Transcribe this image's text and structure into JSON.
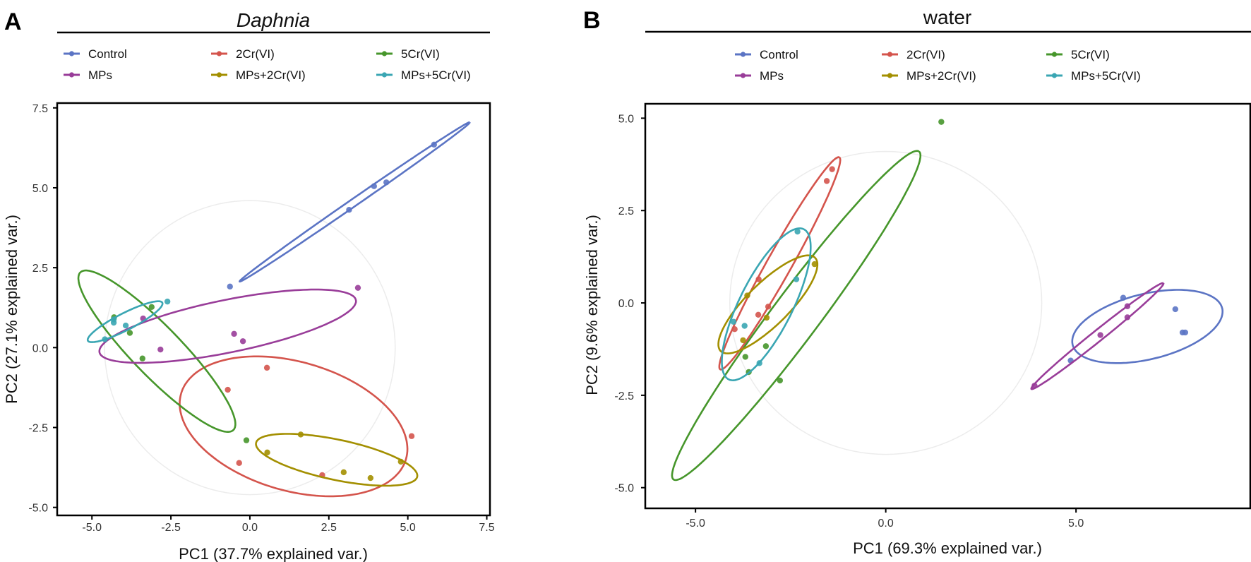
{
  "groups": [
    {
      "name": "Control",
      "color": "#5b74c4"
    },
    {
      "name": "2Cr(VI)",
      "color": "#d4544c"
    },
    {
      "name": "5Cr(VI)",
      "color": "#46962b"
    },
    {
      "name": "MPs",
      "color": "#993d99"
    },
    {
      "name": "MPs+2Cr(VI)",
      "color": "#a38f00"
    },
    {
      "name": "MPs+5Cr(VI)",
      "color": "#3aa6b3"
    }
  ],
  "chart_data": [
    {
      "type": "scatter",
      "panel": "A",
      "title": "Daphnia",
      "xlabel": "PC1 (37.7% explained var.)",
      "ylabel": "PC2 (27.1% explained var.)",
      "xlim": [
        -6.1,
        7.6
      ],
      "ylim": [
        -5.25,
        7.65
      ],
      "xticks": [
        -5.0,
        -2.5,
        0.0,
        2.5,
        5.0,
        7.5
      ],
      "yticks": [
        -5.0,
        -2.5,
        0.0,
        2.5,
        5.0,
        7.5
      ],
      "xtick_labels": [
        "-5.0",
        "-2.5",
        "0.0",
        "2.5",
        "5.0",
        "7.5"
      ],
      "ytick_labels": [
        "-5.0",
        "-2.5",
        "0.0",
        "2.5",
        "5.0",
        "7.5"
      ],
      "circle_radius": 4.6,
      "ellipse_prob": 0.68,
      "legend": "top",
      "series": [
        {
          "name": "Control",
          "points": [
            [
              5.83,
              6.35
            ],
            [
              3.93,
              5.05
            ],
            [
              4.32,
              5.17
            ],
            [
              3.14,
              4.31
            ],
            [
              -0.63,
              1.91
            ]
          ]
        },
        {
          "name": "2Cr(VI)",
          "points": [
            [
              0.54,
              -0.63
            ],
            [
              -0.7,
              -1.32
            ],
            [
              5.12,
              -2.77
            ],
            [
              -0.34,
              -3.61
            ],
            [
              2.29,
              -3.99
            ]
          ]
        },
        {
          "name": "5Cr(VI)",
          "points": [
            [
              -3.11,
              1.27
            ],
            [
              -3.8,
              0.46
            ],
            [
              -3.4,
              -0.34
            ],
            [
              -0.11,
              -2.9
            ],
            [
              -4.3,
              0.95
            ]
          ]
        },
        {
          "name": "MPs",
          "points": [
            [
              3.42,
              1.87
            ],
            [
              -0.5,
              0.43
            ],
            [
              -0.22,
              0.2
            ],
            [
              -2.83,
              -0.06
            ],
            [
              -3.38,
              0.91
            ]
          ]
        },
        {
          "name": "MPs+2Cr(VI)",
          "points": [
            [
              1.61,
              -2.72
            ],
            [
              0.55,
              -3.28
            ],
            [
              2.97,
              -3.9
            ],
            [
              3.82,
              -4.08
            ],
            [
              4.78,
              -3.57
            ]
          ]
        },
        {
          "name": "MPs+5Cr(VI)",
          "points": [
            [
              -2.61,
              1.44
            ],
            [
              -4.31,
              0.88
            ],
            [
              -4.31,
              0.78
            ],
            [
              -3.93,
              0.69
            ],
            [
              -4.59,
              0.26
            ]
          ]
        }
      ]
    },
    {
      "type": "scatter",
      "panel": "B",
      "title": "water",
      "xlabel": "PC1 (69.3% explained var.)",
      "ylabel": "PC2 (9.6% explained var.)",
      "xlim": [
        -6.32,
        9.58
      ],
      "ylim": [
        -5.56,
        5.39
      ],
      "xticks": [
        -5.0,
        0.0,
        5.0
      ],
      "yticks": [
        -5.0,
        -2.5,
        0.0,
        2.5,
        5.0
      ],
      "xtick_labels": [
        "-5.0",
        "0.0",
        "5.0"
      ],
      "ytick_labels": [
        "-5.0",
        "-2.5",
        "0.0",
        "2.5",
        "5.0"
      ],
      "circle_radius": 4.1,
      "ellipse_prob": 0.68,
      "legend": "top",
      "series": [
        {
          "name": "Control",
          "points": [
            [
              6.24,
              0.14
            ],
            [
              7.61,
              -0.17
            ],
            [
              7.8,
              -0.8
            ],
            [
              7.87,
              -0.8
            ],
            [
              4.86,
              -1.56
            ]
          ]
        },
        {
          "name": "2Cr(VI)",
          "points": [
            [
              -1.41,
              3.62
            ],
            [
              -1.55,
              3.3
            ],
            [
              -3.34,
              0.64
            ],
            [
              -3.09,
              -0.1
            ],
            [
              -3.35,
              -0.32
            ],
            [
              -3.97,
              -0.71
            ]
          ]
        },
        {
          "name": "5Cr(VI)",
          "points": [
            [
              1.46,
              4.9
            ],
            [
              -2.78,
              -2.1
            ],
            [
              -3.15,
              -1.17
            ],
            [
              -3.69,
              -1.46
            ],
            [
              -3.6,
              -1.87
            ]
          ]
        },
        {
          "name": "MPs",
          "points": [
            [
              6.35,
              -0.09
            ],
            [
              6.35,
              -0.39
            ],
            [
              5.64,
              -0.87
            ],
            [
              3.91,
              -2.24
            ]
          ]
        },
        {
          "name": "MPs+2Cr(VI)",
          "points": [
            [
              -1.87,
              1.05
            ],
            [
              -3.64,
              0.2
            ],
            [
              -3.13,
              -0.4
            ],
            [
              -3.75,
              -1.01
            ]
          ]
        },
        {
          "name": "MPs+5Cr(VI)",
          "points": [
            [
              -2.32,
              1.93
            ],
            [
              -2.35,
              0.64
            ],
            [
              -4.0,
              -0.51
            ],
            [
              -3.71,
              -0.62
            ],
            [
              -3.32,
              -1.63
            ]
          ]
        }
      ]
    }
  ]
}
